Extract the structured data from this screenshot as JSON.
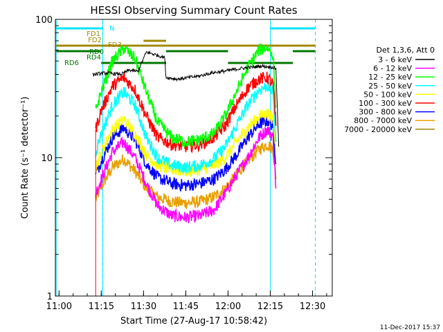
{
  "chart_data": {
    "type": "line",
    "title": "HESSI Observing Summary Count Rates",
    "xlabel": "Start Time (27-Aug-17 10:58:42)",
    "ylabel": "Count Rate (s⁻¹ detector⁻¹)",
    "y_scale": "log",
    "ylim": [
      1,
      100
    ],
    "xlim": [
      "10:58:42",
      "12:37:00"
    ],
    "x_ticks": [
      "11:00",
      "11:15",
      "11:30",
      "11:45",
      "12:00",
      "12:15",
      "12:30"
    ],
    "y_ticks": [
      "1",
      "10",
      "100"
    ],
    "grid": false,
    "legend_position": "right",
    "legend_title": "Det 1,3,6, Att 0",
    "series": [
      {
        "name": "3 - 6 keV",
        "color": "#000000",
        "x": [
          "11:12",
          "11:17",
          "11:22",
          "11:25",
          "11:28",
          "11:31",
          "11:35",
          "11:37:30",
          "11:38",
          "11:42",
          "11:46",
          "11:50",
          "11:54",
          "11:58",
          "12:01",
          "12:04",
          "12:08",
          "12:12",
          "12:16",
          "12:17",
          "12:18"
        ],
        "y": [
          40,
          41,
          40,
          43,
          42,
          58,
          55,
          53,
          38,
          37,
          38,
          39,
          41,
          42,
          43,
          44,
          45,
          46,
          45,
          44,
          12
        ]
      },
      {
        "name": "6 - 12 keV",
        "color": "#ff00ff",
        "x": [
          "11:13",
          "11:15",
          "11:19",
          "11:23",
          "11:27",
          "11:31",
          "11:35",
          "11:40",
          "11:45",
          "11:50",
          "11:55",
          "11:59",
          "12:03",
          "12:07",
          "12:11",
          "12:14",
          "12:16",
          "12:17"
        ],
        "y": [
          5.5,
          7.0,
          11,
          13,
          10,
          6.5,
          4.5,
          3.8,
          3.7,
          3.8,
          4.2,
          5.5,
          7.5,
          10,
          14,
          16,
          14,
          6.0
        ]
      },
      {
        "name": "12 - 25 keV",
        "color": "#00ff00",
        "x": [
          "11:13",
          "11:15",
          "11:19",
          "11:23",
          "11:27",
          "11:31",
          "11:35",
          "11:40",
          "11:45",
          "11:50",
          "11:55",
          "11:59",
          "12:03",
          "12:07",
          "12:11",
          "12:14",
          "12:16",
          "12:17"
        ],
        "y": [
          22,
          30,
          50,
          62,
          52,
          30,
          18,
          14,
          13,
          13.5,
          15,
          20,
          30,
          45,
          60,
          63,
          55,
          23
        ]
      },
      {
        "name": "25 - 50 keV",
        "color": "#00ffff",
        "x": [
          "11:13",
          "11:15",
          "11:19",
          "11:23",
          "11:27",
          "11:31",
          "11:35",
          "11:40",
          "11:45",
          "11:50",
          "11:55",
          "11:59",
          "12:03",
          "12:07",
          "12:11",
          "12:14",
          "12:16",
          "12:17"
        ],
        "y": [
          11,
          15,
          24,
          30,
          24,
          14,
          10,
          8.8,
          8.5,
          8.8,
          9.8,
          12,
          17,
          24,
          31,
          33,
          30,
          13
        ]
      },
      {
        "name": "50 - 100 keV",
        "color": "#ffff00",
        "x": [
          "11:13",
          "11:15",
          "11:19",
          "11:23",
          "11:27",
          "11:31",
          "11:35",
          "11:40",
          "11:45",
          "11:50",
          "11:55",
          "11:59",
          "12:03",
          "12:07",
          "12:11",
          "12:14",
          "12:16",
          "12:17"
        ],
        "y": [
          8.5,
          11,
          16,
          19,
          15,
          10.5,
          8.8,
          8.2,
          8.0,
          8.2,
          8.8,
          10,
          13,
          16.5,
          20,
          21,
          19,
          11
        ]
      },
      {
        "name": "100 - 300 keV",
        "color": "#ff0000",
        "x": [
          "11:13",
          "11:15",
          "11:19",
          "11:23",
          "11:27",
          "11:31",
          "11:35",
          "11:40",
          "11:45",
          "11:50",
          "11:55",
          "11:59",
          "12:03",
          "12:07",
          "12:11",
          "12:14",
          "12:16",
          "12:17"
        ],
        "y": [
          16,
          22,
          33,
          38,
          31,
          20,
          14,
          12.5,
          12,
          12.5,
          14,
          17,
          24,
          32,
          37,
          38,
          34,
          17
        ]
      },
      {
        "name": "300 - 800 keV",
        "color": "#0000ff",
        "x": [
          "11:13",
          "11:15",
          "11:19",
          "11:23",
          "11:27",
          "11:31",
          "11:35",
          "11:40",
          "11:45",
          "11:50",
          "11:55",
          "11:59",
          "12:03",
          "12:07",
          "12:11",
          "12:14",
          "12:16",
          "12:17"
        ],
        "y": [
          7.5,
          9.5,
          14,
          16.5,
          13.5,
          9.0,
          7.2,
          6.5,
          6.3,
          6.5,
          7.0,
          8.2,
          10.5,
          14,
          17.5,
          18.5,
          17,
          9.0
        ]
      },
      {
        "name": "800 - 7000 keV",
        "color": "#e8a000",
        "x": [
          "11:13",
          "11:15",
          "11:19",
          "11:23",
          "11:27",
          "11:31",
          "11:35",
          "11:40",
          "11:45",
          "11:50",
          "11:55",
          "11:59",
          "12:03",
          "12:07",
          "12:11",
          "12:14",
          "12:16",
          "12:17"
        ],
        "y": [
          5.0,
          6.2,
          8.5,
          9.8,
          8.0,
          6.0,
          5.2,
          4.8,
          4.7,
          4.8,
          5.2,
          6.0,
          7.5,
          9.5,
          11.5,
          12.5,
          11.5,
          7.0
        ]
      },
      {
        "name": "7000 - 20000 keV",
        "color": "#a08800",
        "x": [],
        "y": []
      }
    ],
    "annotations": [
      {
        "label": "N",
        "color": "#00e5ff"
      },
      {
        "label": "FD1",
        "color": "#a08800"
      },
      {
        "label": "FD2",
        "color": "#a08800"
      },
      {
        "label": "FD3",
        "color": "#a08800"
      },
      {
        "label": "RD0",
        "color": "#007700"
      },
      {
        "label": "RD4",
        "color": "#007700"
      },
      {
        "label": "RD6",
        "color": "#007700"
      }
    ],
    "bars": {
      "night": [
        [
          "10:59",
          "11:15:30"
        ],
        [
          "12:15",
          "12:31"
        ]
      ],
      "night_lines": [
        "10:59",
        "11:15:30",
        "12:15"
      ],
      "night_dashed": [
        "11:15:30",
        "12:31"
      ],
      "fd3": [
        [
          "11:30",
          "11:38"
        ]
      ],
      "rd0": [
        [
          "10:59",
          "11:15"
        ],
        [
          "11:38",
          "12:00"
        ],
        [
          "12:23",
          "12:31"
        ]
      ],
      "rd6": [
        [
          "11:15",
          "11:38"
        ],
        [
          "12:00",
          "12:23"
        ]
      ],
      "olive_line": [
        "10:59",
        "12:31"
      ]
    }
  },
  "footer": {
    "date": "11-Dec-2017 15:37"
  }
}
